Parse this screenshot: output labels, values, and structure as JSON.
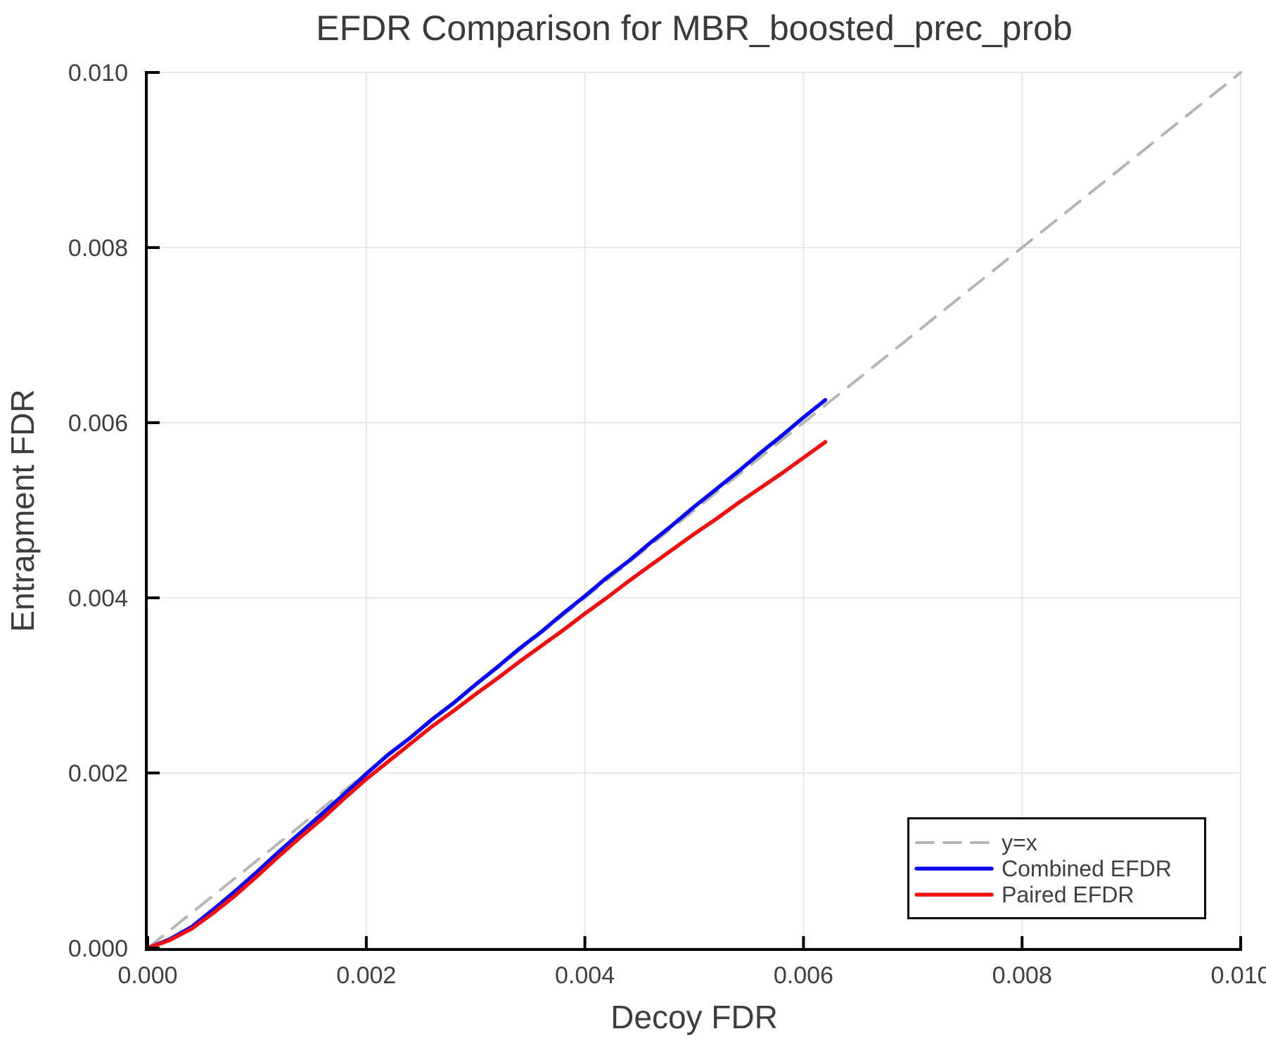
{
  "title": "EFDR Comparison for MBR_boosted_prec_prob",
  "colors": {
    "combined": "#0808f0",
    "paired": "#ee1010",
    "identity": "#b5b5b5",
    "grid": "#e7e7e7",
    "axis": "#000000",
    "text": "#3f3f3f",
    "legend_border": "#000000",
    "legend_background": "#ffffff"
  },
  "chart_data": {
    "type": "line",
    "title": "EFDR Comparison for MBR_boosted_prec_prob",
    "xlabel": "Decoy FDR",
    "ylabel": "Entrapment FDR",
    "xlim": [
      0.0,
      0.01
    ],
    "ylim": [
      0.0,
      0.01
    ],
    "grid": true,
    "legend_position": "bottom-right",
    "xticks": [
      0.0,
      0.002,
      0.004,
      0.006,
      0.008,
      0.01
    ],
    "xtick_labels": [
      "0.000",
      "0.002",
      "0.004",
      "0.006",
      "0.008",
      "0.010"
    ],
    "yticks": [
      0.0,
      0.002,
      0.004,
      0.006,
      0.008,
      0.01
    ],
    "ytick_labels": [
      "0.000",
      "0.002",
      "0.004",
      "0.006",
      "0.008",
      "0.010"
    ],
    "series": [
      {
        "name": "y=x",
        "id": "y-equals-x",
        "style": "dashed",
        "color": "#b5b5b5",
        "width": 4,
        "points": [
          [
            0.0,
            0.0
          ],
          [
            0.01,
            0.01
          ]
        ]
      },
      {
        "name": "Combined EFDR",
        "id": "combined-efdr",
        "style": "solid",
        "color": "#0808f0",
        "width": 5.5,
        "points": [
          [
            0.0,
            0.0
          ],
          [
            0.0002,
            0.0001
          ],
          [
            0.0004,
            0.00024
          ],
          [
            0.0006,
            0.00044
          ],
          [
            0.0008,
            0.00065
          ],
          [
            0.001,
            0.00087
          ],
          [
            0.0012,
            0.0011
          ],
          [
            0.0014,
            0.00132
          ],
          [
            0.0016,
            0.00154
          ],
          [
            0.0018,
            0.00176
          ],
          [
            0.002,
            0.00199
          ],
          [
            0.0022,
            0.00221
          ],
          [
            0.0024,
            0.0024
          ],
          [
            0.0026,
            0.00261
          ],
          [
            0.0028,
            0.0028
          ],
          [
            0.003,
            0.00301
          ],
          [
            0.0032,
            0.00321
          ],
          [
            0.0034,
            0.00342
          ],
          [
            0.0036,
            0.00361
          ],
          [
            0.0038,
            0.00382
          ],
          [
            0.004,
            0.00402
          ],
          [
            0.0042,
            0.00423
          ],
          [
            0.0044,
            0.00442
          ],
          [
            0.0046,
            0.00463
          ],
          [
            0.0048,
            0.00483
          ],
          [
            0.005,
            0.00504
          ],
          [
            0.0052,
            0.00524
          ],
          [
            0.0054,
            0.00544
          ],
          [
            0.0056,
            0.00565
          ],
          [
            0.0058,
            0.00585
          ],
          [
            0.006,
            0.00606
          ],
          [
            0.0062,
            0.00626
          ]
        ]
      },
      {
        "name": "Paired EFDR",
        "id": "paired-efdr",
        "style": "solid",
        "color": "#ee1010",
        "width": 5.5,
        "points": [
          [
            0.0,
            0.0
          ],
          [
            0.0002,
            9e-05
          ],
          [
            0.0004,
            0.00022
          ],
          [
            0.0006,
            0.0004
          ],
          [
            0.0008,
            0.0006
          ],
          [
            0.001,
            0.00082
          ],
          [
            0.0012,
            0.00105
          ],
          [
            0.0014,
            0.00127
          ],
          [
            0.0016,
            0.00148
          ],
          [
            0.0018,
            0.00171
          ],
          [
            0.002,
            0.00193
          ],
          [
            0.0022,
            0.00213
          ],
          [
            0.0024,
            0.00233
          ],
          [
            0.0026,
            0.00253
          ],
          [
            0.0028,
            0.00271
          ],
          [
            0.003,
            0.0029
          ],
          [
            0.0032,
            0.00308
          ],
          [
            0.0034,
            0.00327
          ],
          [
            0.0036,
            0.00345
          ],
          [
            0.0038,
            0.00363
          ],
          [
            0.004,
            0.00382
          ],
          [
            0.0042,
            0.004
          ],
          [
            0.0044,
            0.00419
          ],
          [
            0.0046,
            0.00437
          ],
          [
            0.0048,
            0.00455
          ],
          [
            0.005,
            0.00473
          ],
          [
            0.0052,
            0.0049
          ],
          [
            0.0054,
            0.00508
          ],
          [
            0.0056,
            0.00525
          ],
          [
            0.0058,
            0.00542
          ],
          [
            0.006,
            0.0056
          ],
          [
            0.0062,
            0.00578
          ]
        ]
      }
    ],
    "legend_entries": [
      "y=x",
      "Combined EFDR",
      "Paired EFDR"
    ]
  }
}
